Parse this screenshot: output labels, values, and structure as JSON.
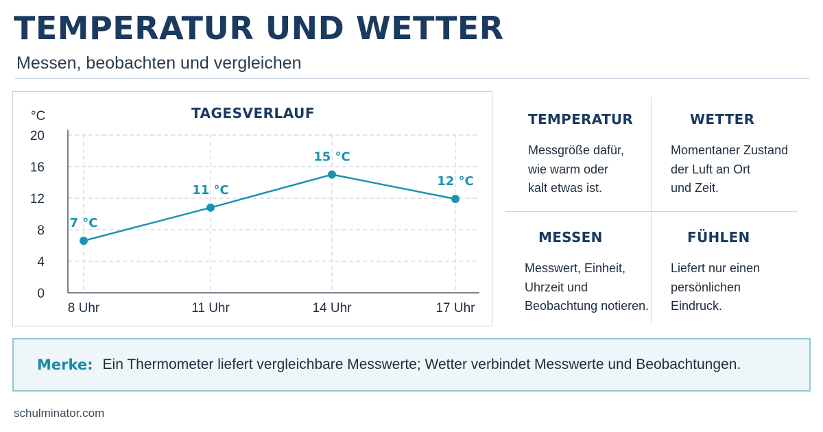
{
  "header": {
    "title": "TEMPERATUR UND WETTER",
    "subtitle": "Messen, beobachten und vergleichen"
  },
  "chart_data": {
    "type": "line",
    "title": "TAGESVERLAUF",
    "ylabel": "°C",
    "xlabel": "",
    "categories": [
      "8 Uhr",
      "11 Uhr",
      "14 Uhr",
      "17 Uhr"
    ],
    "series": [
      {
        "values": [
          6.6,
          10.8,
          15.0,
          11.9
        ]
      }
    ],
    "data_labels": [
      "7 °C",
      "11 °C",
      "15 °C",
      "12 °C"
    ],
    "yticks": [
      0,
      4,
      8,
      12,
      16,
      20
    ],
    "ylim": [
      0,
      20
    ],
    "grid": true,
    "colors": {
      "line": "#1b93b0",
      "grid": "#cfd8e1",
      "axis": "#4a5a6a"
    }
  },
  "info": [
    {
      "heading": "TEMPERATUR",
      "lines": [
        "Messgröße dafür,",
        "wie warm oder",
        "kalt etwas ist."
      ]
    },
    {
      "heading": "WETTER",
      "lines": [
        "Momentaner Zustand",
        "der Luft an Ort",
        "und Zeit."
      ]
    },
    {
      "heading": "MESSEN",
      "lines": [
        "Messwert, Einheit,",
        "Uhrzeit und",
        "Beobachtung notieren."
      ]
    },
    {
      "heading": "FÜHLEN",
      "lines": [
        "Liefert nur einen",
        "persönlichen",
        "Eindruck."
      ]
    }
  ],
  "note": {
    "label": "Merke:",
    "text": "Ein Thermometer liefert vergleichbare Messwerte; Wetter verbindet Messwerte und Beobachtungen."
  },
  "footer": {
    "source": "schulminator.com"
  }
}
